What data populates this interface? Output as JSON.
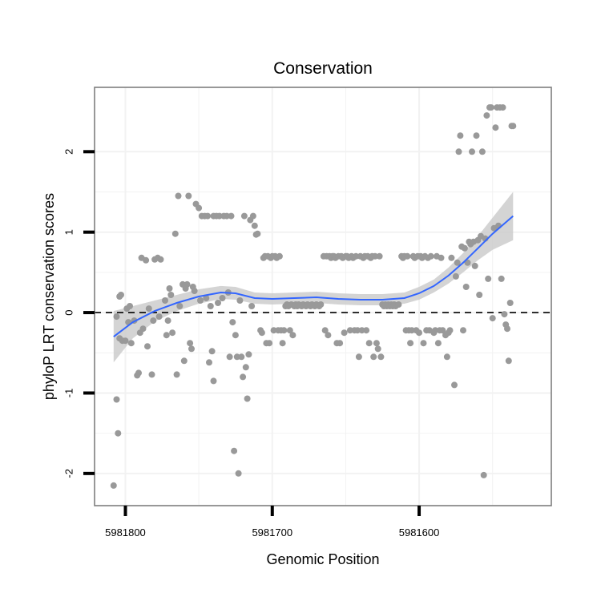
{
  "chart_data": {
    "type": "scatter",
    "title": "Conservation",
    "xlabel": "Genomic Position",
    "ylabel": "phyloP LRT conservation scores",
    "x_reversed": true,
    "xlim": [
      5981821,
      5981510
    ],
    "ylim": [
      -2.4,
      2.8
    ],
    "x_ticks": [
      5981800,
      5981700,
      5981600
    ],
    "x_tick_labels": [
      "5981800",
      "5981700",
      "5981600"
    ],
    "y_ticks": [
      -2,
      -1,
      0,
      1,
      2
    ],
    "y_tick_labels": [
      "-2",
      "-1",
      "0",
      "1",
      "2"
    ],
    "reference_line": {
      "y": 0,
      "style": "dashed"
    },
    "grid": true,
    "colors": {
      "points": "#999999",
      "smooth": "#3366FF",
      "ribbon": "#CCCCCC",
      "reference": "#000000",
      "panel_border": "#7F7F7F",
      "grid": "#F2F2F2"
    },
    "points": [
      [
        5981808,
        -2.15
      ],
      [
        5981806,
        -1.08
      ],
      [
        5981805,
        -1.5
      ],
      [
        5981806,
        -0.05
      ],
      [
        5981804,
        0.2
      ],
      [
        5981803,
        0.22
      ],
      [
        5981804,
        -0.32
      ],
      [
        5981802,
        -0.35
      ],
      [
        5981800,
        -0.35
      ],
      [
        5981799,
        0.05
      ],
      [
        5981798,
        -0.12
      ],
      [
        5981797,
        0.08
      ],
      [
        5981796,
        -0.38
      ],
      [
        5981794,
        -0.1
      ],
      [
        5981792,
        -0.78
      ],
      [
        5981791,
        -0.75
      ],
      [
        5981790,
        -0.25
      ],
      [
        5981789,
        0.68
      ],
      [
        5981788,
        -0.2
      ],
      [
        5981786,
        0.65
      ],
      [
        5981785,
        -0.42
      ],
      [
        5981784,
        0.05
      ],
      [
        5981782,
        -0.77
      ],
      [
        5981781,
        -0.1
      ],
      [
        5981780,
        0.66
      ],
      [
        5981778,
        0.68
      ],
      [
        5981777,
        -0.05
      ],
      [
        5981776,
        0.66
      ],
      [
        5981773,
        0.15
      ],
      [
        5981772,
        -0.28
      ],
      [
        5981771,
        -0.1
      ],
      [
        5981770,
        0.3
      ],
      [
        5981769,
        0.22
      ],
      [
        5981768,
        -0.25
      ],
      [
        5981766,
        0.98
      ],
      [
        5981765,
        -0.77
      ],
      [
        5981764,
        1.45
      ],
      [
        5981763,
        0.08
      ],
      [
        5981761,
        0.35
      ],
      [
        5981760,
        -0.6
      ],
      [
        5981759,
        0.3
      ],
      [
        5981758,
        0.35
      ],
      [
        5981757,
        1.45
      ],
      [
        5981756,
        -0.38
      ],
      [
        5981755,
        -0.45
      ],
      [
        5981754,
        0.32
      ],
      [
        5981753,
        0.27
      ],
      [
        5981752,
        1.35
      ],
      [
        5981750,
        1.3
      ],
      [
        5981749,
        0.15
      ],
      [
        5981748,
        1.2
      ],
      [
        5981746,
        1.2
      ],
      [
        5981745,
        0.18
      ],
      [
        5981744,
        1.2
      ],
      [
        5981743,
        -0.62
      ],
      [
        5981742,
        0.08
      ],
      [
        5981741,
        -0.48
      ],
      [
        5981740,
        -0.85
      ],
      [
        5981740,
        1.2
      ],
      [
        5981738,
        1.2
      ],
      [
        5981737,
        0.12
      ],
      [
        5981736,
        1.2
      ],
      [
        5981734,
        0.18
      ],
      [
        5981733,
        1.2
      ],
      [
        5981731,
        1.2
      ],
      [
        5981730,
        0.25
      ],
      [
        5981729,
        -0.55
      ],
      [
        5981728,
        1.2
      ],
      [
        5981727,
        -0.12
      ],
      [
        5981726,
        -1.72
      ],
      [
        5981725,
        -0.28
      ],
      [
        5981724,
        -0.55
      ],
      [
        5981723,
        -2.0
      ],
      [
        5981722,
        0.15
      ],
      [
        5981721,
        -0.55
      ],
      [
        5981720,
        -0.8
      ],
      [
        5981719,
        1.2
      ],
      [
        5981718,
        -0.68
      ],
      [
        5981717,
        -1.07
      ],
      [
        5981716,
        -0.52
      ],
      [
        5981715,
        1.15
      ],
      [
        5981714,
        0.08
      ],
      [
        5981713,
        1.2
      ],
      [
        5981712,
        1.08
      ],
      [
        5981711,
        0.97
      ],
      [
        5981710,
        0.98
      ],
      [
        5981708,
        -0.22
      ],
      [
        5981707,
        -0.25
      ],
      [
        5981706,
        0.68
      ],
      [
        5981705,
        0.7
      ],
      [
        5981704,
        -0.38
      ],
      [
        5981703,
        0.7
      ],
      [
        5981702,
        -0.38
      ],
      [
        5981701,
        0.68
      ],
      [
        5981700,
        0.7
      ],
      [
        5981699,
        -0.22
      ],
      [
        5981698,
        0.7
      ],
      [
        5981697,
        0.68
      ],
      [
        5981696,
        -0.22
      ],
      [
        5981695,
        0.7
      ],
      [
        5981694,
        -0.22
      ],
      [
        5981693,
        -0.38
      ],
      [
        5981692,
        -0.22
      ],
      [
        5981691,
        0.08
      ],
      [
        5981690,
        0.1
      ],
      [
        5981689,
        0.08
      ],
      [
        5981688,
        -0.22
      ],
      [
        5981687,
        0.1
      ],
      [
        5981686,
        -0.28
      ],
      [
        5981685,
        0.08
      ],
      [
        5981684,
        0.1
      ],
      [
        5981683,
        0.08
      ],
      [
        5981682,
        0.1
      ],
      [
        5981680,
        0.08
      ],
      [
        5981679,
        0.1
      ],
      [
        5981677,
        0.08
      ],
      [
        5981676,
        0.1
      ],
      [
        5981674,
        0.08
      ],
      [
        5981673,
        0.1
      ],
      [
        5981671,
        0.08
      ],
      [
        5981670,
        0.1
      ],
      [
        5981668,
        0.08
      ],
      [
        5981667,
        0.1
      ],
      [
        5981665,
        0.7
      ],
      [
        5981664,
        -0.22
      ],
      [
        5981663,
        0.7
      ],
      [
        5981662,
        -0.28
      ],
      [
        5981661,
        0.7
      ],
      [
        5981660,
        0.68
      ],
      [
        5981659,
        0.7
      ],
      [
        5981658,
        0.7
      ],
      [
        5981657,
        0.68
      ],
      [
        5981656,
        -0.38
      ],
      [
        5981655,
        0.7
      ],
      [
        5981654,
        -0.38
      ],
      [
        5981653,
        0.7
      ],
      [
        5981652,
        0.68
      ],
      [
        5981651,
        -0.25
      ],
      [
        5981650,
        0.7
      ],
      [
        5981649,
        0.7
      ],
      [
        5981648,
        0.68
      ],
      [
        5981647,
        -0.22
      ],
      [
        5981646,
        0.7
      ],
      [
        5981645,
        0.68
      ],
      [
        5981644,
        -0.22
      ],
      [
        5981643,
        0.7
      ],
      [
        5981642,
        -0.22
      ],
      [
        5981641,
        -0.55
      ],
      [
        5981640,
        0.7
      ],
      [
        5981639,
        -0.22
      ],
      [
        5981638,
        0.68
      ],
      [
        5981637,
        0.7
      ],
      [
        5981636,
        -0.22
      ],
      [
        5981635,
        0.7
      ],
      [
        5981634,
        -0.38
      ],
      [
        5981633,
        0.68
      ],
      [
        5981632,
        0.7
      ],
      [
        5981631,
        -0.55
      ],
      [
        5981630,
        0.7
      ],
      [
        5981629,
        -0.38
      ],
      [
        5981628,
        -0.45
      ],
      [
        5981627,
        0.7
      ],
      [
        5981626,
        -0.55
      ],
      [
        5981625,
        0.1
      ],
      [
        5981624,
        0.08
      ],
      [
        5981623,
        0.1
      ],
      [
        5981622,
        0.08
      ],
      [
        5981621,
        0.1
      ],
      [
        5981620,
        0.08
      ],
      [
        5981619,
        0.1
      ],
      [
        5981618,
        0.08
      ],
      [
        5981617,
        0.1
      ],
      [
        5981616,
        0.08
      ],
      [
        5981614,
        0.1
      ],
      [
        5981612,
        0.7
      ],
      [
        5981611,
        0.68
      ],
      [
        5981610,
        0.7
      ],
      [
        5981609,
        -0.22
      ],
      [
        5981608,
        0.7
      ],
      [
        5981607,
        -0.22
      ],
      [
        5981606,
        -0.38
      ],
      [
        5981605,
        -0.22
      ],
      [
        5981604,
        0.7
      ],
      [
        5981603,
        0.68
      ],
      [
        5981602,
        -0.22
      ],
      [
        5981601,
        0.7
      ],
      [
        5981600,
        -0.25
      ],
      [
        5981599,
        0.7
      ],
      [
        5981598,
        0.68
      ],
      [
        5981597,
        -0.38
      ],
      [
        5981596,
        0.7
      ],
      [
        5981595,
        -0.22
      ],
      [
        5981594,
        0.68
      ],
      [
        5981593,
        -0.22
      ],
      [
        5981592,
        0.7
      ],
      [
        5981590,
        -0.25
      ],
      [
        5981589,
        -0.22
      ],
      [
        5981588,
        0.7
      ],
      [
        5981587,
        -0.38
      ],
      [
        5981586,
        -0.22
      ],
      [
        5981585,
        0.68
      ],
      [
        5981584,
        -0.22
      ],
      [
        5981582,
        -0.28
      ],
      [
        5981581,
        -0.55
      ],
      [
        5981580,
        -0.25
      ],
      [
        5981579,
        -0.22
      ],
      [
        5981578,
        0.68
      ],
      [
        5981576,
        -0.9
      ],
      [
        5981575,
        0.45
      ],
      [
        5981574,
        0.62
      ],
      [
        5981573,
        2.0
      ],
      [
        5981572,
        2.2
      ],
      [
        5981571,
        0.82
      ],
      [
        5981570,
        -0.22
      ],
      [
        5981569,
        0.8
      ],
      [
        5981568,
        0.32
      ],
      [
        5981567,
        0.62
      ],
      [
        5981566,
        0.88
      ],
      [
        5981565,
        0.85
      ],
      [
        5981564,
        2.0
      ],
      [
        5981563,
        0.88
      ],
      [
        5981562,
        0.58
      ],
      [
        5981561,
        2.2
      ],
      [
        5981560,
        0.9
      ],
      [
        5981559,
        0.22
      ],
      [
        5981558,
        0.95
      ],
      [
        5981557,
        2.0
      ],
      [
        5981556,
        -2.02
      ],
      [
        5981555,
        0.92
      ],
      [
        5981554,
        2.45
      ],
      [
        5981553,
        0.42
      ],
      [
        5981552,
        2.55
      ],
      [
        5981551,
        2.55
      ],
      [
        5981550,
        -0.07
      ],
      [
        5981549,
        1.05
      ],
      [
        5981548,
        2.3
      ],
      [
        5981547,
        2.55
      ],
      [
        5981546,
        1.08
      ],
      [
        5981545,
        2.55
      ],
      [
        5981544,
        0.42
      ],
      [
        5981543,
        2.55
      ],
      [
        5981542,
        -0.02
      ],
      [
        5981541,
        -0.15
      ],
      [
        5981540,
        -0.2
      ],
      [
        5981539,
        -0.6
      ],
      [
        5981538,
        0.12
      ],
      [
        5981537,
        2.32
      ],
      [
        5981536,
        2.32
      ]
    ],
    "smooth": {
      "x": [
        5981808,
        5981795,
        5981780,
        5981765,
        5981750,
        5981735,
        5981725,
        5981712,
        5981700,
        5981685,
        5981670,
        5981655,
        5981640,
        5981625,
        5981610,
        5981600,
        5981590,
        5981580,
        5981570,
        5981560,
        5981550,
        5981536
      ],
      "y": [
        -0.3,
        -0.12,
        0.02,
        0.12,
        0.2,
        0.25,
        0.24,
        0.18,
        0.17,
        0.18,
        0.19,
        0.17,
        0.16,
        0.16,
        0.18,
        0.24,
        0.33,
        0.46,
        0.62,
        0.8,
        0.98,
        1.2
      ],
      "se": [
        0.32,
        0.2,
        0.13,
        0.1,
        0.09,
        0.08,
        0.08,
        0.07,
        0.07,
        0.07,
        0.07,
        0.07,
        0.07,
        0.07,
        0.07,
        0.08,
        0.08,
        0.1,
        0.12,
        0.15,
        0.2,
        0.3
      ]
    }
  }
}
